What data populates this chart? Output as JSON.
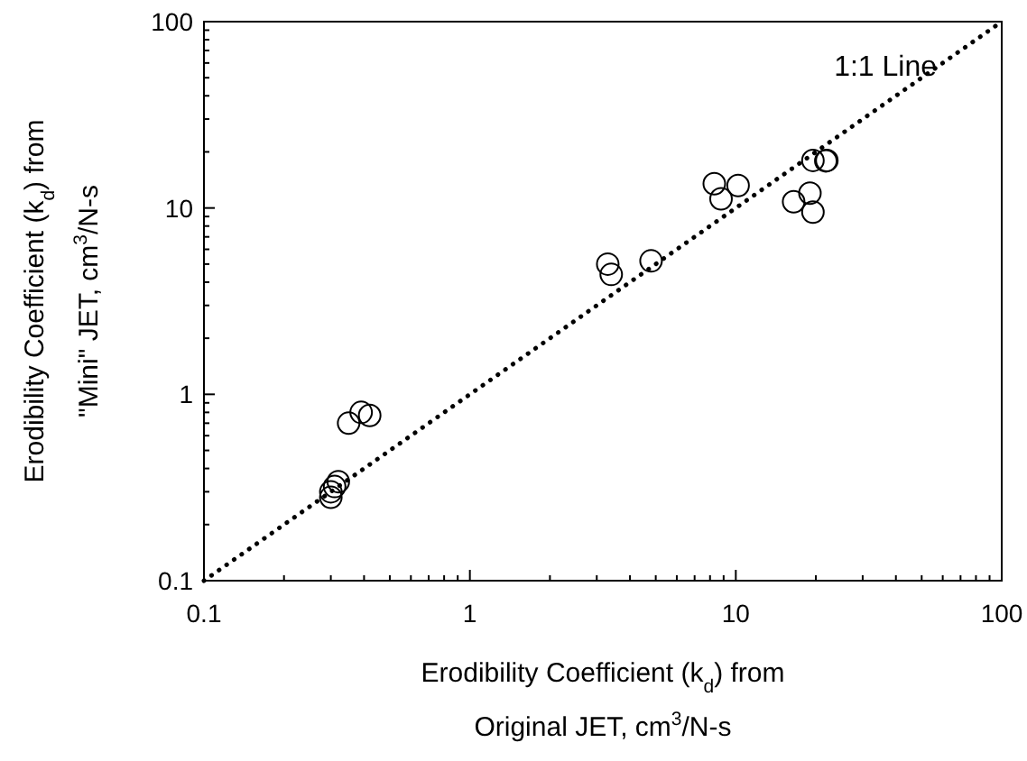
{
  "chart_data": {
    "type": "scatter",
    "log": "xy",
    "xlabel": "Erodibility Coefficient (k$_{d}$) from\nOriginal JET, cm$^{3}$/N-s",
    "ylabel": "Erodibility Coefficient (k$_{d}$) from\n\"Mini\" JET, cm$^{3}$/N-s",
    "xlim": [
      0.1,
      100
    ],
    "ylim": [
      0.1,
      100
    ],
    "xticks": [
      0.1,
      1,
      10,
      100
    ],
    "yticks": [
      0.1,
      1,
      10,
      100
    ],
    "grid": false,
    "marker": "circle",
    "series": [
      {
        "color": "#000000",
        "x": [
          0.3,
          0.3,
          0.31,
          0.32,
          0.35,
          0.39,
          0.42,
          3.3,
          3.4,
          4.8,
          8.3,
          8.8,
          10.2,
          16.5,
          19,
          19.5,
          19.5,
          22,
          21.8
        ],
        "values": [
          0.28,
          0.3,
          0.32,
          0.34,
          0.7,
          0.8,
          0.77,
          5.0,
          4.4,
          5.2,
          13.5,
          11.2,
          13.2,
          10.8,
          12,
          18,
          9.5,
          18,
          17.9
        ]
      },
      {
        "name": "1:1 Line",
        "type": "line",
        "marker": "none",
        "line_style": "dotted",
        "color": "#000000",
        "x": [
          0.1,
          100
        ],
        "values": [
          0.1,
          100
        ]
      }
    ]
  }
}
